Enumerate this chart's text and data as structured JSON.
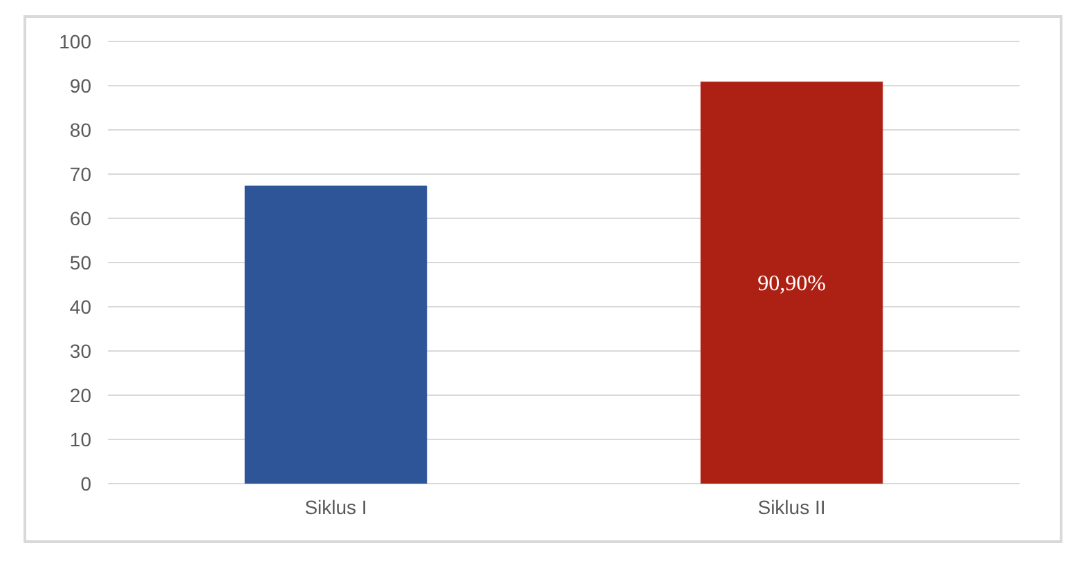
{
  "chart_data": {
    "type": "bar",
    "categories": [
      "Siklus I",
      "Siklus II"
    ],
    "values": [
      67.4,
      90.9
    ],
    "colors": [
      "#2e5597",
      "#ad2115"
    ],
    "value_labels": [
      null,
      "90,90%"
    ],
    "ylim": [
      0,
      100
    ],
    "yticks": [
      0,
      10,
      20,
      30,
      40,
      50,
      60,
      70,
      80,
      90,
      100
    ],
    "grid": "y"
  }
}
